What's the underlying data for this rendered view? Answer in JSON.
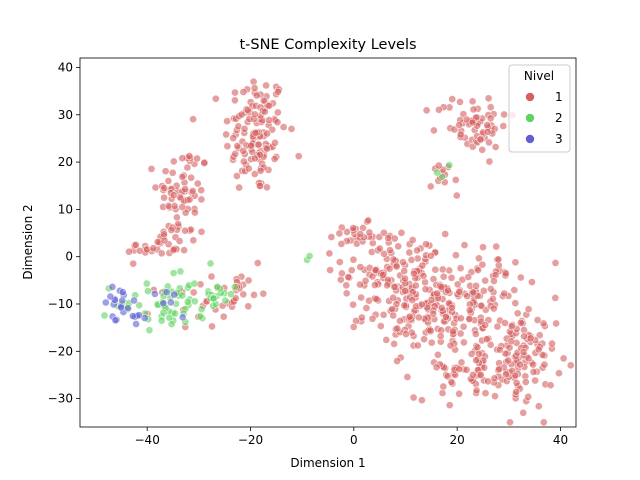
{
  "chart_data": {
    "type": "scatter",
    "title": "t-SNE Complexity Levels",
    "xlabel": "Dimension 1",
    "ylabel": "Dimension 2",
    "xlim": [
      -53,
      43
    ],
    "ylim": [
      -36,
      42
    ],
    "xticks": [
      -40,
      -20,
      0,
      20,
      40
    ],
    "yticks": [
      -30,
      -20,
      -10,
      0,
      10,
      20,
      30,
      40
    ],
    "grid": false,
    "legend": {
      "title": "Nivel",
      "placement": "top-right",
      "entries": [
        {
          "label": "1",
          "color": "#d65f5f"
        },
        {
          "label": "2",
          "color": "#5fd35f"
        },
        {
          "label": "3",
          "color": "#5f5fd3"
        }
      ]
    },
    "series": [
      {
        "name": "1",
        "color": "#d65f5f",
        "clusters": [
          {
            "cx": -19,
            "cy": 26,
            "sx": 3.0,
            "sy": 6.5,
            "n": 130
          },
          {
            "cx": -33,
            "cy": 13,
            "sx": 2.5,
            "sy": 5.5,
            "n": 70
          },
          {
            "cx": -38,
            "cy": 2,
            "sx": 3.0,
            "sy": 1.5,
            "n": 30
          },
          {
            "cx": -30,
            "cy": -10,
            "sx": 4.0,
            "sy": 2.5,
            "n": 25
          },
          {
            "cx": -22,
            "cy": -6,
            "sx": 2.5,
            "sy": 2.0,
            "n": 15
          },
          {
            "cx": 8,
            "cy": -3,
            "sx": 5.0,
            "sy": 4.0,
            "n": 110
          },
          {
            "cx": 14,
            "cy": -12,
            "sx": 6.0,
            "sy": 4.0,
            "n": 130
          },
          {
            "cx": 24,
            "cy": -8,
            "sx": 5.0,
            "sy": 5.0,
            "n": 100
          },
          {
            "cx": 32,
            "cy": -22,
            "sx": 3.5,
            "sy": 5.0,
            "n": 110
          },
          {
            "cx": 22,
            "cy": -24,
            "sx": 5.0,
            "sy": 3.0,
            "n": 60
          },
          {
            "cx": 0,
            "cy": 4,
            "sx": 3.0,
            "sy": 1.5,
            "n": 25
          },
          {
            "cx": 23,
            "cy": 28,
            "sx": 3.5,
            "sy": 3.0,
            "n": 65
          },
          {
            "cx": 18,
            "cy": 17,
            "sx": 1.5,
            "sy": 2.0,
            "n": 12
          }
        ]
      },
      {
        "name": "2",
        "color": "#5fd35f",
        "clusters": [
          {
            "cx": -36,
            "cy": -10,
            "sx": 5.0,
            "sy": 2.5,
            "n": 55
          },
          {
            "cx": -27,
            "cy": -7,
            "sx": 3.0,
            "sy": 1.5,
            "n": 15
          },
          {
            "cx": -34,
            "cy": -3.5,
            "sx": 0.5,
            "sy": 0.4,
            "n": 2
          },
          {
            "cx": -8.5,
            "cy": -0.2,
            "sx": 0.3,
            "sy": 0.3,
            "n": 2
          },
          {
            "cx": 16,
            "cy": 17,
            "sx": 0.5,
            "sy": 0.5,
            "n": 2
          },
          {
            "cx": 19,
            "cy": 19.5,
            "sx": 0.4,
            "sy": 0.4,
            "n": 1
          }
        ]
      },
      {
        "name": "3",
        "color": "#5f5fd3",
        "clusters": [
          {
            "cx": -46,
            "cy": -9,
            "sx": 1.5,
            "sy": 1.5,
            "n": 14
          },
          {
            "cx": -42,
            "cy": -13,
            "sx": 1.5,
            "sy": 1.5,
            "n": 10
          },
          {
            "cx": -36,
            "cy": -10,
            "sx": 2.0,
            "sy": 1.5,
            "n": 6
          }
        ]
      }
    ]
  }
}
